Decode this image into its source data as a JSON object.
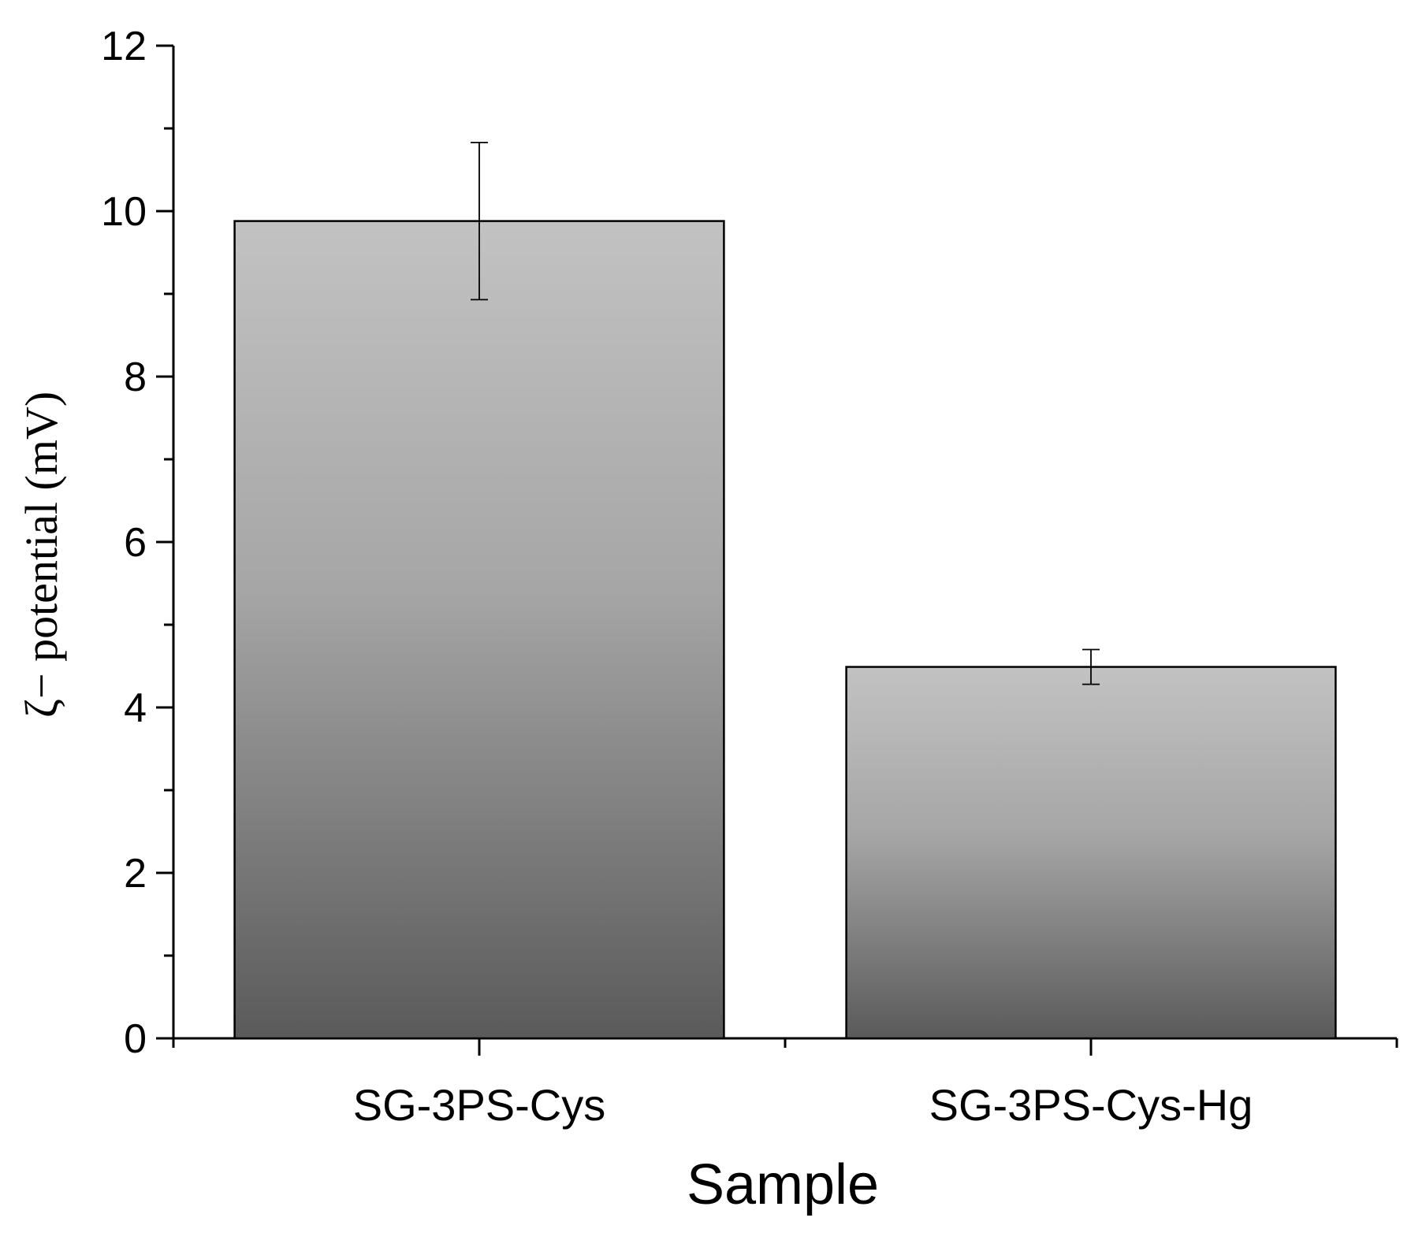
{
  "chart_data": {
    "type": "bar",
    "categories": [
      "SG-3PS-Cys",
      "SG-3PS-Cys-Hg"
    ],
    "values": [
      9.88,
      4.49
    ],
    "errors": [
      0.95,
      0.21
    ],
    "xlabel": "Sample",
    "ylabel": "ζ− potential (mV)",
    "ylim": [
      0,
      12
    ],
    "yticks": [
      0,
      2,
      4,
      6,
      8,
      10,
      12
    ],
    "grid": false,
    "legend": "none",
    "colors": {
      "bar_top": "#c2c2c2",
      "bar_mid": "#a6a6a6",
      "bar_bottom": "#5a5a5a",
      "outline": "#000000"
    }
  }
}
